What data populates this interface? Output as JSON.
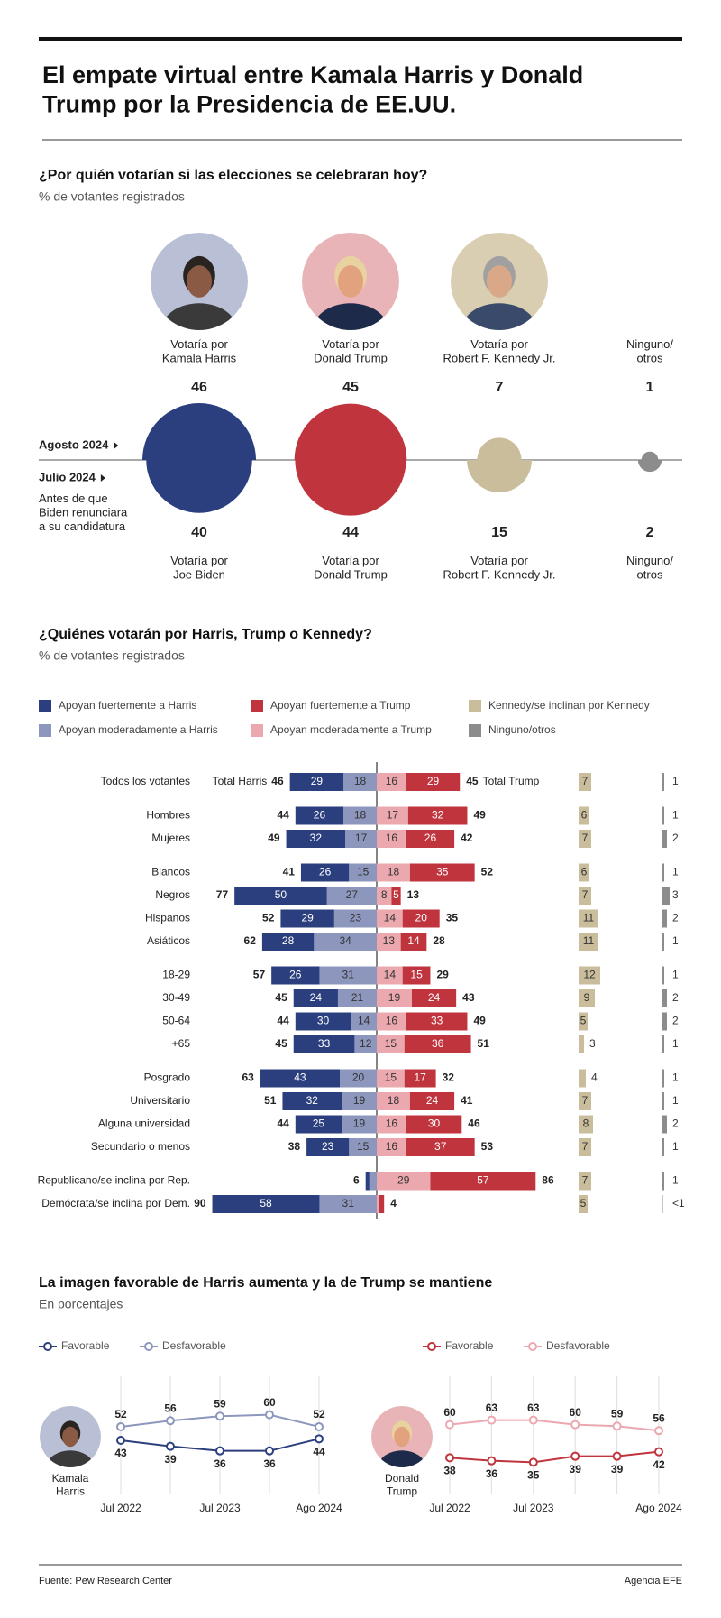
{
  "title": "El empate virtual entre Kamala Harris y Donald\nTrump por la Presidencia de EE.UU.",
  "source": "Fuente: Pew Research Center",
  "credit": "Agencia EFE",
  "chart_data": [
    {
      "type": "bubble",
      "title": "¿Por quién votarían si las elecciones se celebraran hoy?",
      "subtitle": "% de votantes registrados",
      "colors": [
        "#2b3f7e",
        "#c0343d",
        "#c9bd9c",
        "#8c8c8c"
      ],
      "series": [
        {
          "name": "Agosto 2024",
          "labels": [
            "Votaría por\nKamala Harris",
            "Votaría por\nDonald Trump",
            "Votaría por\nRobert F. Kennedy Jr.",
            "Ninguno/\notros"
          ],
          "values": [
            46,
            45,
            7,
            1
          ]
        },
        {
          "name": "Julio 2024",
          "note": "Antes de que\nBiden renunciara\na su candidatura",
          "labels": [
            "Votaría por\nJoe Biden",
            "Votaría por\nDonald Trump",
            "Votaría por\nRobert F. Kennedy Jr.",
            "Ninguno/\notros"
          ],
          "values": [
            40,
            44,
            15,
            2
          ]
        }
      ]
    },
    {
      "type": "diverging-bar",
      "title": "¿Quiénes votarán por Harris, Trump o Kennedy?",
      "subtitle": "% de votantes registrados",
      "categories": [
        "Todos los votantes",
        "Hombres",
        "Mujeres",
        "Blancos",
        "Negros",
        "Hispanos",
        "Asiáticos",
        "18-29",
        "30-49",
        "50-64",
        "+65",
        "Posgrado",
        "Universitario",
        "Alguna universidad",
        "Secundario o menos",
        "Republicano/se inclina por Rep.",
        "Demócrata/se inclina por Dem."
      ],
      "series": [
        {
          "name": "Apoyan fuertemente a Harris",
          "color": "#2b3f7e",
          "values": [
            29,
            26,
            32,
            26,
            50,
            29,
            28,
            26,
            24,
            30,
            33,
            43,
            32,
            25,
            23,
            2,
            58
          ]
        },
        {
          "name": "Apoyan moderadamente a Harris",
          "color": "#8d97bd",
          "values": [
            18,
            18,
            17,
            15,
            27,
            23,
            34,
            31,
            21,
            14,
            12,
            20,
            19,
            19,
            15,
            4,
            31
          ]
        },
        {
          "name": "Apoyan fuertemente a Trump",
          "color": "#c0343d",
          "values": [
            29,
            32,
            26,
            35,
            5,
            20,
            14,
            15,
            24,
            33,
            36,
            17,
            24,
            30,
            37,
            57,
            3
          ]
        },
        {
          "name": "Apoyan moderadamente a Trump",
          "color": "#eba8ae",
          "values": [
            16,
            17,
            16,
            18,
            8,
            14,
            13,
            14,
            19,
            16,
            15,
            15,
            18,
            16,
            16,
            29,
            1
          ]
        },
        {
          "name": "Kennedy/se inclinan por Kennedy",
          "color": "#c9bd9c",
          "values": [
            7,
            6,
            7,
            6,
            7,
            11,
            11,
            12,
            9,
            5,
            3,
            4,
            7,
            8,
            7,
            7,
            5
          ]
        },
        {
          "name": "Ninguno/otros",
          "color": "#8c8c8c",
          "values": [
            1,
            1,
            2,
            1,
            3,
            2,
            1,
            1,
            2,
            2,
            1,
            1,
            1,
            2,
            1,
            1,
            0.5
          ],
          "value_labels": [
            "1",
            "1",
            "2",
            "1",
            "3",
            "2",
            "1",
            "1",
            "2",
            "2",
            "1",
            "1",
            "1",
            "2",
            "1",
            "1",
            "<1"
          ]
        }
      ],
      "totals": [
        {
          "name": "Total Harris",
          "values": [
            46,
            44,
            49,
            41,
            77,
            52,
            62,
            57,
            45,
            44,
            45,
            63,
            51,
            44,
            38,
            6,
            90
          ]
        },
        {
          "name": "Total Trump",
          "values": [
            45,
            49,
            42,
            52,
            13,
            35,
            28,
            29,
            43,
            49,
            51,
            32,
            41,
            46,
            53,
            86,
            4
          ]
        }
      ]
    },
    {
      "type": "line",
      "title": "La imagen favorable de Harris aumenta y la de Trump se mantiene",
      "subtitle": "En porcentajes",
      "person": "Kamala\nHarris",
      "categories": [
        "Jul 2022",
        null,
        "Jul 2023",
        null,
        "Ago 2024"
      ],
      "series": [
        {
          "name": "Favorable",
          "color": "#2b3f7e",
          "values": [
            43,
            39,
            36,
            36,
            44
          ]
        },
        {
          "name": "Desfavorable",
          "color": "#8d97bd",
          "values": [
            52,
            56,
            59,
            60,
            52
          ]
        }
      ]
    },
    {
      "type": "line",
      "person": "Donald\nTrump",
      "categories": [
        "Jul 2022",
        null,
        "Jul 2023",
        null,
        null,
        "Ago 2024"
      ],
      "series": [
        {
          "name": "Favorable",
          "color": "#c0343d",
          "values": [
            38,
            36,
            35,
            39,
            39,
            42
          ]
        },
        {
          "name": "Desfavorable",
          "color": "#eba8b0",
          "values": [
            60,
            63,
            63,
            60,
            59,
            56
          ]
        }
      ]
    }
  ]
}
